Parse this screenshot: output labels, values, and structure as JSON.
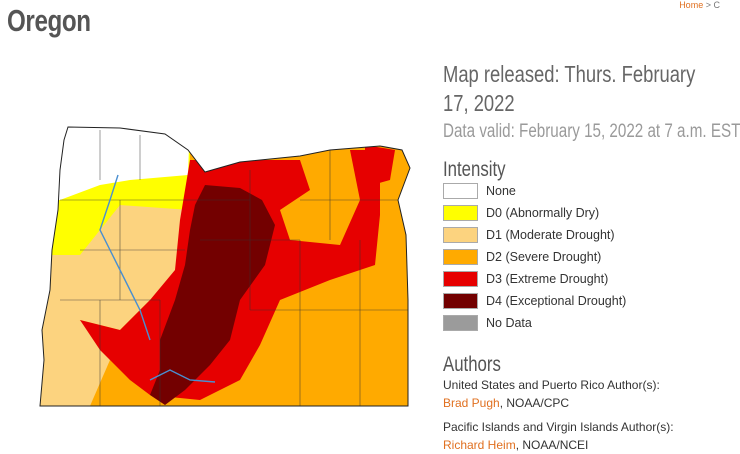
{
  "breadcrumb": {
    "home": "Home",
    "separator": ">",
    "current": "C"
  },
  "title": "Oregon",
  "released": "Map released: Thurs. February 17, 2022",
  "valid": "Data valid: February 15, 2022 at 7 a.m. EST",
  "legend": {
    "title": "Intensity",
    "items": [
      {
        "label": "None",
        "color": "#ffffff"
      },
      {
        "label": "D0 (Abnormally Dry)",
        "color": "#ffff00"
      },
      {
        "label": "D1 (Moderate Drought)",
        "color": "#fcd37f"
      },
      {
        "label": "D2 (Severe Drought)",
        "color": "#ffaa00"
      },
      {
        "label": "D3 (Extreme Drought)",
        "color": "#e60000"
      },
      {
        "label": "D4 (Exceptional Drought)",
        "color": "#730000"
      },
      {
        "label": "No Data",
        "color": "#9b9b9b"
      }
    ]
  },
  "authors": {
    "title": "Authors",
    "groups": [
      {
        "heading": "United States and Puerto Rico Author(s):",
        "name": "Brad Pugh",
        "affiliation": ", NOAA/CPC"
      },
      {
        "heading": "Pacific Islands and Virgin Islands Author(s):",
        "name": "Richard Heim",
        "affiliation": ", NOAA/NCEI"
      }
    ]
  }
}
